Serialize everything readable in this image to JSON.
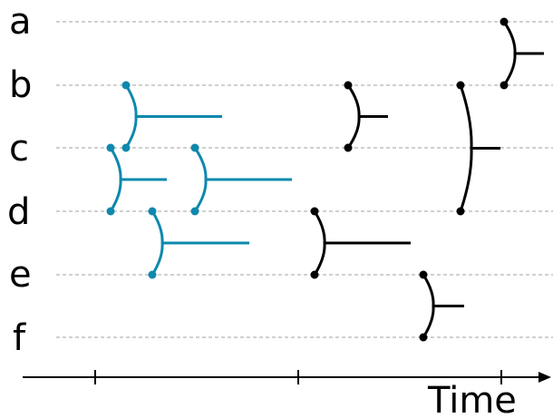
{
  "rows": [
    "a",
    "b",
    "c",
    "d",
    "e",
    "f"
  ],
  "axis": {
    "label": "Time",
    "ticks": 3
  },
  "colors": {
    "teal": "#0e88ad",
    "black": "#000000",
    "guide": "#b3b3b3"
  },
  "merges": [
    {
      "id": "teal-bc",
      "color": "teal",
      "rows": [
        "b",
        "c"
      ]
    },
    {
      "id": "teal-cd-1",
      "color": "teal",
      "rows": [
        "c",
        "d"
      ]
    },
    {
      "id": "teal-cd-2",
      "color": "teal",
      "rows": [
        "c",
        "d"
      ]
    },
    {
      "id": "teal-de",
      "color": "teal",
      "rows": [
        "d",
        "e"
      ]
    },
    {
      "id": "black-bc",
      "color": "black",
      "rows": [
        "b",
        "c"
      ]
    },
    {
      "id": "black-de",
      "color": "black",
      "rows": [
        "d",
        "e"
      ]
    },
    {
      "id": "black-ef",
      "color": "black",
      "rows": [
        "e",
        "f"
      ]
    },
    {
      "id": "black-bd",
      "color": "black",
      "rows": [
        "b",
        "d"
      ]
    },
    {
      "id": "black-ab",
      "color": "black",
      "rows": [
        "a",
        "b"
      ]
    }
  ]
}
